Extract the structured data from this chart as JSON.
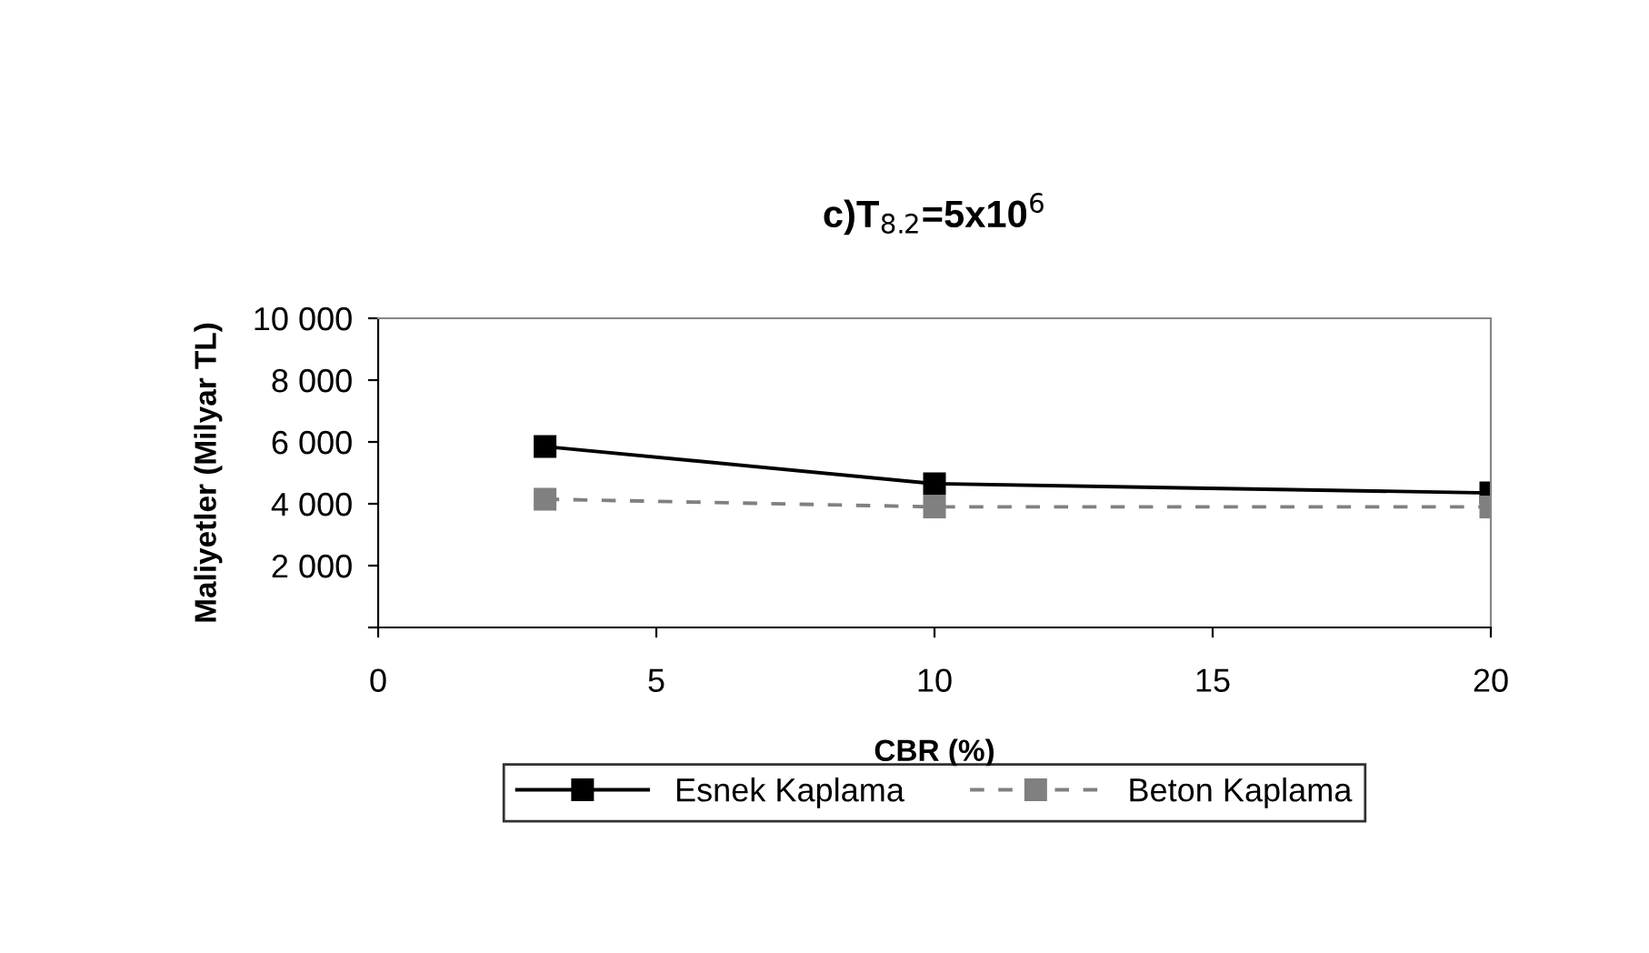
{
  "chart_data": {
    "type": "line",
    "title": "c)T$_{8.2}$=5x10$^{6}$",
    "xlabel": "CBR (%)",
    "ylabel": "Maliyetler (Milyar TL)",
    "x": [
      3,
      10,
      20
    ],
    "series": [
      {
        "name": "Esnek Kaplama",
        "color": "#000000",
        "values": [
          5850,
          4650,
          4350
        ],
        "line_style": "solid"
      },
      {
        "name": "Beton Kaplama",
        "color": "#808080",
        "values": [
          4150,
          3900,
          3900
        ],
        "line_style": "dashed"
      }
    ],
    "xlim": [
      0,
      20
    ],
    "xticks": [
      0,
      5,
      10,
      15,
      20
    ],
    "ylim": [
      0,
      10000
    ],
    "yticks": [
      {
        "value": 0,
        "label": null
      },
      {
        "value": 2000,
        "label": "2 000"
      },
      {
        "value": 4000,
        "label": "4 000"
      },
      {
        "value": 6000,
        "label": "6 000"
      },
      {
        "value": 8000,
        "label": "8 000"
      },
      {
        "value": 10000,
        "label": "10 000"
      }
    ],
    "marker": "square",
    "grid": false,
    "legend": "bottom"
  }
}
